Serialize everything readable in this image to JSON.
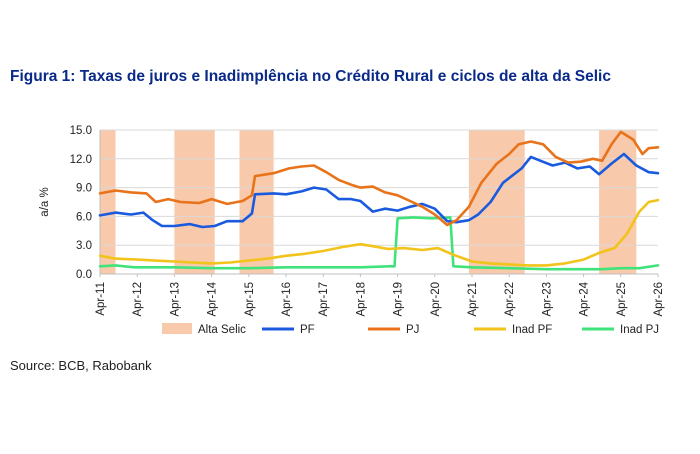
{
  "title": "Figura 1: Taxas de juros e Inadimplência no Crédito Rural e ciclos de alta da Selic",
  "source": "Source: BCB, Rabobank",
  "chart_data": {
    "type": "line",
    "ylabel": "a/a %",
    "xlabel": "",
    "ylim": [
      0,
      15
    ],
    "yticks": [
      0,
      3,
      6,
      9,
      12,
      15
    ],
    "ytick_labels": [
      "0.0",
      "3.0",
      "6.0",
      "9.0",
      "12.0",
      "15.0"
    ],
    "xlim": [
      "2011-04",
      "2026-04"
    ],
    "xtick_labels": [
      "Apr-11",
      "Apr-12",
      "Apr-13",
      "Apr-14",
      "Apr-15",
      "Apr-16",
      "Apr-17",
      "Apr-18",
      "Apr-19",
      "Apr-20",
      "Apr-21",
      "Apr-22",
      "Apr-23",
      "Apr-24",
      "Apr-25",
      "Apr-26"
    ],
    "grid": "horizontal",
    "legend_position": "bottom",
    "shaded_periods": {
      "name": "Alta Selic",
      "color": "#f8c9aa",
      "ranges": [
        [
          "2011-04",
          "2011-09"
        ],
        [
          "2013-04",
          "2014-05"
        ],
        [
          "2015-01",
          "2015-12"
        ],
        [
          "2021-03",
          "2022-09"
        ],
        [
          "2024-09",
          "2025-09"
        ]
      ]
    },
    "series": [
      {
        "name": "PF",
        "color": "#1a5adf",
        "points": [
          [
            "2011-04",
            6.1
          ],
          [
            "2011-09",
            6.4
          ],
          [
            "2012-02",
            6.2
          ],
          [
            "2012-06",
            6.4
          ],
          [
            "2012-09",
            5.6
          ],
          [
            "2012-12",
            5.0
          ],
          [
            "2013-04",
            5.0
          ],
          [
            "2013-09",
            5.2
          ],
          [
            "2014-01",
            4.9
          ],
          [
            "2014-05",
            5.0
          ],
          [
            "2014-09",
            5.5
          ],
          [
            "2015-02",
            5.5
          ],
          [
            "2015-05",
            6.3
          ],
          [
            "2015-06",
            8.3
          ],
          [
            "2015-12",
            8.4
          ],
          [
            "2016-04",
            8.3
          ],
          [
            "2016-09",
            8.6
          ],
          [
            "2017-01",
            9.0
          ],
          [
            "2017-05",
            8.8
          ],
          [
            "2017-09",
            7.8
          ],
          [
            "2018-01",
            7.8
          ],
          [
            "2018-04",
            7.6
          ],
          [
            "2018-08",
            6.5
          ],
          [
            "2018-12",
            6.8
          ],
          [
            "2019-04",
            6.6
          ],
          [
            "2019-08",
            7.0
          ],
          [
            "2019-12",
            7.3
          ],
          [
            "2020-04",
            6.8
          ],
          [
            "2020-08",
            5.5
          ],
          [
            "2020-11",
            5.4
          ],
          [
            "2021-03",
            5.6
          ],
          [
            "2021-06",
            6.2
          ],
          [
            "2021-10",
            7.5
          ],
          [
            "2022-02",
            9.5
          ],
          [
            "2022-08",
            11.0
          ],
          [
            "2022-11",
            12.2
          ],
          [
            "2023-02",
            11.8
          ],
          [
            "2023-06",
            11.3
          ],
          [
            "2023-10",
            11.6
          ],
          [
            "2024-02",
            11.0
          ],
          [
            "2024-06",
            11.2
          ],
          [
            "2024-09",
            10.4
          ],
          [
            "2025-01",
            11.5
          ],
          [
            "2025-05",
            12.5
          ],
          [
            "2025-09",
            11.3
          ],
          [
            "2026-01",
            10.6
          ],
          [
            "2026-04",
            10.5
          ]
        ]
      },
      {
        "name": "PJ",
        "color": "#e8731a",
        "points": [
          [
            "2011-04",
            8.4
          ],
          [
            "2011-09",
            8.7
          ],
          [
            "2012-02",
            8.5
          ],
          [
            "2012-07",
            8.4
          ],
          [
            "2012-10",
            7.5
          ],
          [
            "2013-02",
            7.8
          ],
          [
            "2013-06",
            7.5
          ],
          [
            "2013-12",
            7.4
          ],
          [
            "2014-04",
            7.8
          ],
          [
            "2014-09",
            7.3
          ],
          [
            "2015-02",
            7.6
          ],
          [
            "2015-05",
            8.2
          ],
          [
            "2015-06",
            10.2
          ],
          [
            "2015-12",
            10.5
          ],
          [
            "2016-05",
            11.0
          ],
          [
            "2016-09",
            11.2
          ],
          [
            "2017-01",
            11.3
          ],
          [
            "2017-05",
            10.6
          ],
          [
            "2017-09",
            9.8
          ],
          [
            "2018-01",
            9.3
          ],
          [
            "2018-04",
            9.0
          ],
          [
            "2018-08",
            9.1
          ],
          [
            "2018-12",
            8.5
          ],
          [
            "2019-04",
            8.2
          ],
          [
            "2019-08",
            7.6
          ],
          [
            "2019-12",
            7.0
          ],
          [
            "2020-04",
            6.2
          ],
          [
            "2020-08",
            5.1
          ],
          [
            "2020-11",
            5.6
          ],
          [
            "2021-03",
            7.0
          ],
          [
            "2021-07",
            9.5
          ],
          [
            "2021-12",
            11.5
          ],
          [
            "2022-04",
            12.5
          ],
          [
            "2022-07",
            13.5
          ],
          [
            "2022-11",
            13.8
          ],
          [
            "2023-03",
            13.5
          ],
          [
            "2023-07",
            12.2
          ],
          [
            "2023-11",
            11.6
          ],
          [
            "2024-03",
            11.7
          ],
          [
            "2024-07",
            12.0
          ],
          [
            "2024-10",
            11.8
          ],
          [
            "2025-01",
            13.5
          ],
          [
            "2025-04",
            14.8
          ],
          [
            "2025-08",
            14.0
          ],
          [
            "2025-11",
            12.5
          ],
          [
            "2026-01",
            13.1
          ],
          [
            "2026-04",
            13.2
          ]
        ]
      },
      {
        "name": "Inad PF",
        "color": "#f2c31a",
        "points": [
          [
            "2011-04",
            1.9
          ],
          [
            "2011-09",
            1.6
          ],
          [
            "2012-04",
            1.5
          ],
          [
            "2012-10",
            1.4
          ],
          [
            "2013-04",
            1.3
          ],
          [
            "2013-10",
            1.2
          ],
          [
            "2014-04",
            1.1
          ],
          [
            "2014-10",
            1.2
          ],
          [
            "2015-04",
            1.4
          ],
          [
            "2015-10",
            1.6
          ],
          [
            "2016-04",
            1.9
          ],
          [
            "2016-10",
            2.1
          ],
          [
            "2017-04",
            2.4
          ],
          [
            "2017-10",
            2.8
          ],
          [
            "2018-04",
            3.1
          ],
          [
            "2018-08",
            2.9
          ],
          [
            "2019-01",
            2.6
          ],
          [
            "2019-06",
            2.7
          ],
          [
            "2019-12",
            2.5
          ],
          [
            "2020-05",
            2.7
          ],
          [
            "2020-10",
            2.0
          ],
          [
            "2021-04",
            1.3
          ],
          [
            "2021-10",
            1.1
          ],
          [
            "2022-04",
            1.0
          ],
          [
            "2022-10",
            0.9
          ],
          [
            "2023-04",
            0.9
          ],
          [
            "2023-10",
            1.1
          ],
          [
            "2024-04",
            1.5
          ],
          [
            "2024-09",
            2.2
          ],
          [
            "2025-02",
            2.7
          ],
          [
            "2025-06",
            4.2
          ],
          [
            "2025-10",
            6.5
          ],
          [
            "2026-01",
            7.5
          ],
          [
            "2026-04",
            7.7
          ]
        ]
      },
      {
        "name": "Inad PJ",
        "color": "#3fe37a",
        "points": [
          [
            "2011-04",
            0.8
          ],
          [
            "2011-09",
            0.9
          ],
          [
            "2012-03",
            0.7
          ],
          [
            "2012-09",
            0.7
          ],
          [
            "2013-04",
            0.7
          ],
          [
            "2014-04",
            0.6
          ],
          [
            "2015-04",
            0.6
          ],
          [
            "2016-04",
            0.7
          ],
          [
            "2017-04",
            0.7
          ],
          [
            "2018-04",
            0.7
          ],
          [
            "2019-01",
            0.8
          ],
          [
            "2019-03",
            0.8
          ],
          [
            "2019-04",
            5.8
          ],
          [
            "2019-09",
            5.9
          ],
          [
            "2020-03",
            5.8
          ],
          [
            "2020-09",
            5.9
          ],
          [
            "2020-10",
            0.8
          ],
          [
            "2021-04",
            0.7
          ],
          [
            "2022-04",
            0.6
          ],
          [
            "2023-04",
            0.5
          ],
          [
            "2024-04",
            0.5
          ],
          [
            "2024-10",
            0.5
          ],
          [
            "2025-04",
            0.6
          ],
          [
            "2025-10",
            0.6
          ],
          [
            "2026-04",
            0.9
          ]
        ]
      }
    ]
  }
}
